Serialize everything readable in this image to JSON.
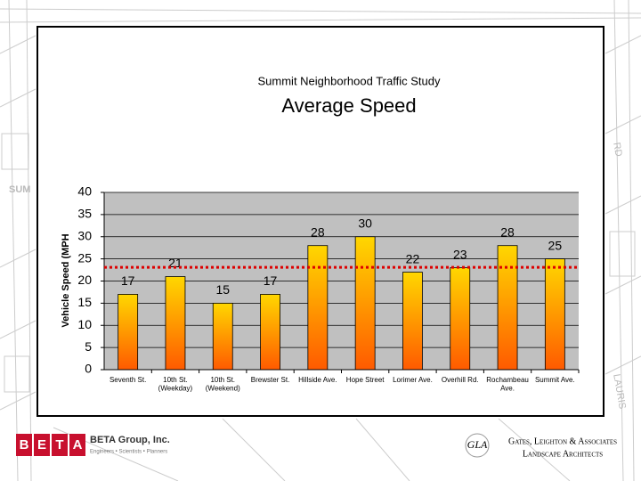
{
  "chart_data": {
    "type": "bar",
    "supertitle": "Summit Neighborhood Traffic Study",
    "title": "Average Speed",
    "y_label": "Vehicle Speed (MPH",
    "categories": [
      "Seventh St.",
      "10th St.\n(Weekday)",
      "10th St.\n(Weekend)",
      "Brewster St.",
      "Hillside Ave.",
      "Hope Street",
      "Lorimer Ave.",
      "Overhill Rd.",
      "Rochambeau\nAve.",
      "Summit Ave."
    ],
    "values": [
      17,
      21,
      15,
      17,
      28,
      30,
      22,
      23,
      28,
      25
    ],
    "colors": [
      "#ffd700",
      "#ff5a00"
    ],
    "reference_line": 23.1,
    "reference_color": "#dd0000",
    "ylim": [
      0,
      40
    ],
    "yticks": [
      0,
      5,
      10,
      15,
      20,
      25,
      30,
      35,
      40
    ],
    "grid": true
  },
  "footer": {
    "beta_letters": [
      "B",
      "E",
      "T",
      "A"
    ],
    "beta_name": "BETA Group, Inc.",
    "beta_tagline": "Engineers • Scientists • Planners",
    "gla_logo": "GLA",
    "gla_name": "Gates, Leighton & Associates",
    "gla_sub": "Landscape Architects"
  },
  "background_labels": [
    "SUM",
    "RD",
    "LAURIS"
  ]
}
